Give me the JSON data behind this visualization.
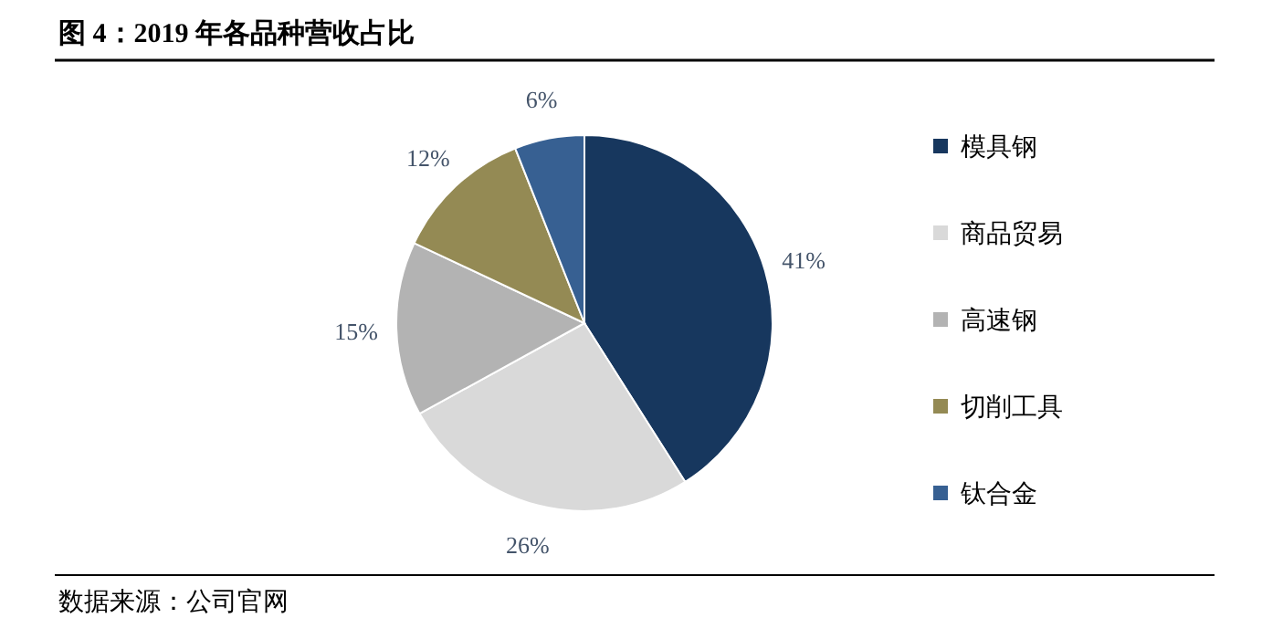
{
  "chart_data": {
    "type": "pie",
    "title": "图 4：2019 年各品种营收占比",
    "categories": [
      "模具钢",
      "商品贸易",
      "高速钢",
      "切削工具",
      "钛合金"
    ],
    "values": [
      41,
      26,
      15,
      12,
      6
    ],
    "colors": [
      "#17375e",
      "#d9d9d9",
      "#b3b3b3",
      "#948a54",
      "#376092"
    ],
    "value_labels": [
      "41%",
      "26%",
      "15%",
      "12%",
      "6%"
    ],
    "legend": "right",
    "annotations": [
      "数据来源：公司官网"
    ]
  }
}
